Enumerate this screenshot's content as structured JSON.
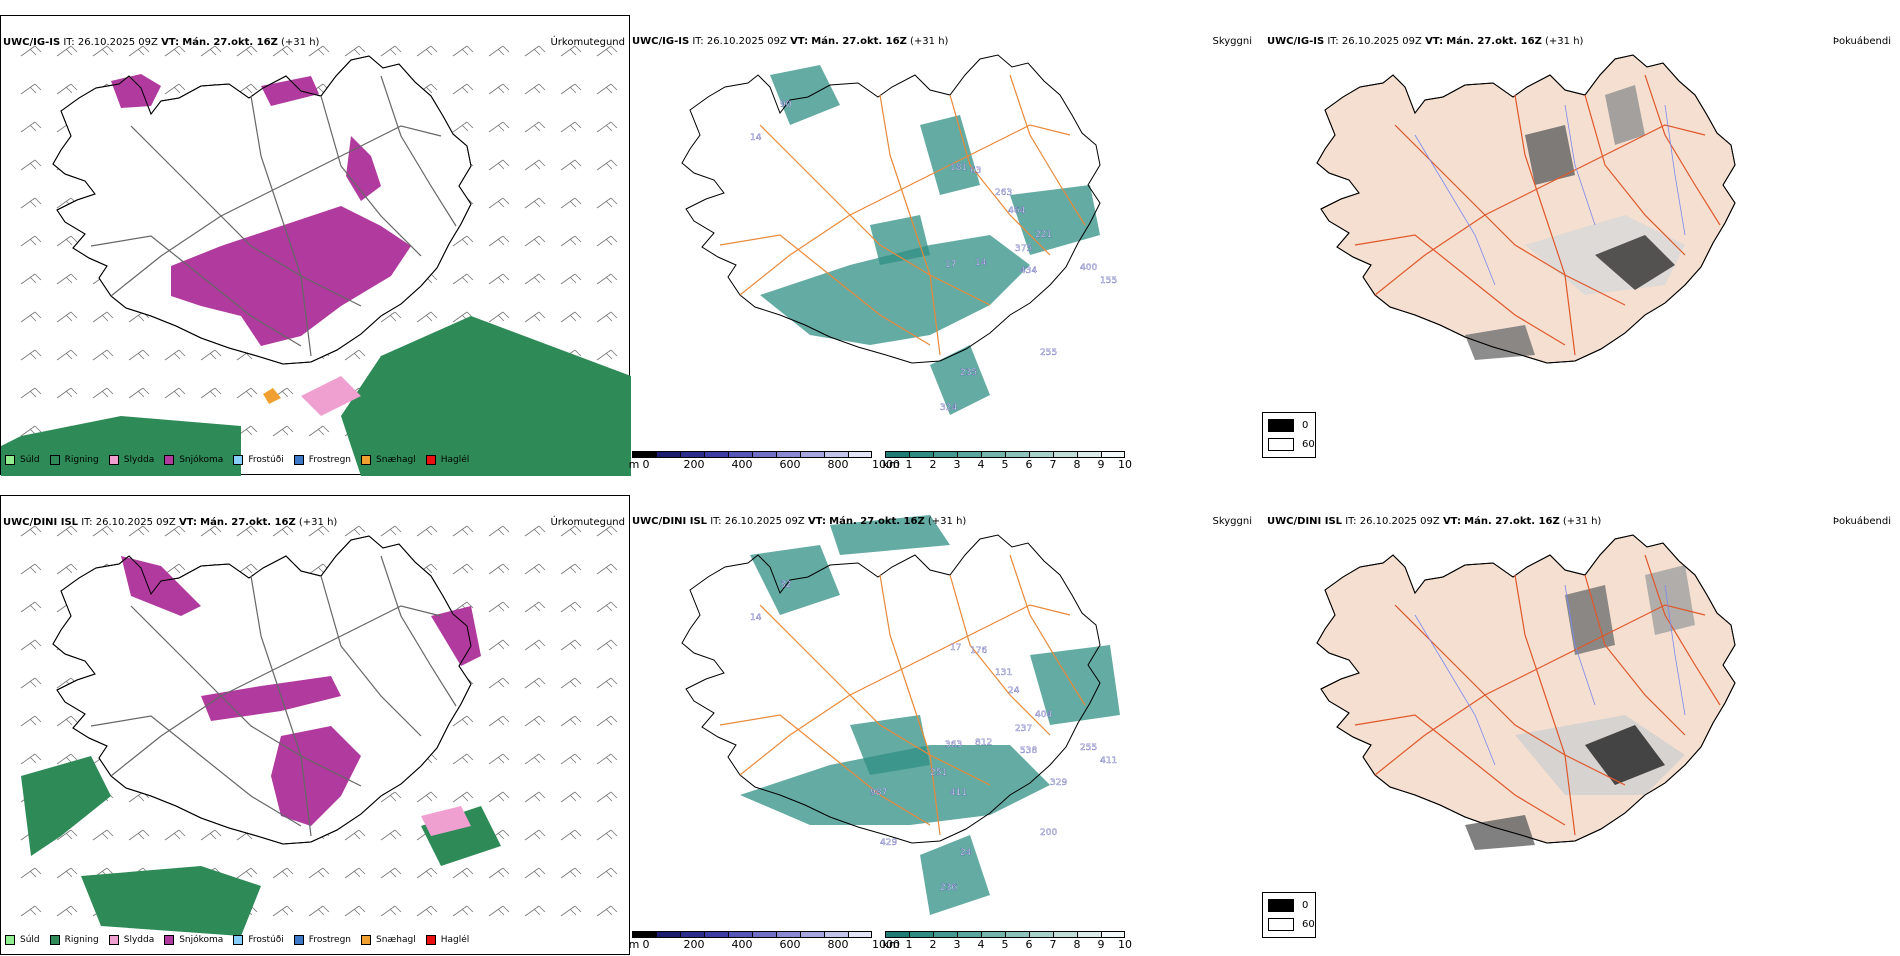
{
  "colors": {
    "suld": "#90ee90",
    "rigning": "#2e8b57",
    "slydda": "#f0a0d0",
    "snjokoma": "#b03a9e",
    "frostudi": "#87cefa",
    "frostregn": "#3d77c8",
    "snaehagl": "#f0a030",
    "haglel": "#e81010",
    "visibility": "#2f8f84",
    "roads": "#e8893a",
    "land": "#f5dfd0"
  },
  "legend": {
    "items": [
      {
        "label": "Súld",
        "color": "#90ee90"
      },
      {
        "label": "Rigning",
        "color": "#2e8b57"
      },
      {
        "label": "Slydda",
        "color": "#f0a0d0"
      },
      {
        "label": "Snjókoma",
        "color": "#b03a9e"
      },
      {
        "label": "Frostúði",
        "color": "#87cefa"
      },
      {
        "label": "Frostregn",
        "color": "#3d77c8"
      },
      {
        "label": "Snæhagl",
        "color": "#f0a030"
      },
      {
        "label": "Haglél",
        "color": "#e81010"
      }
    ]
  },
  "height_bar": {
    "unit": "m",
    "ticks": [
      "0",
      "200",
      "400",
      "600",
      "800",
      "1000"
    ],
    "colors": [
      "#000000",
      "#1c1c6e",
      "#2c2c8c",
      "#3c3ca4",
      "#5555b8",
      "#6f6fc6",
      "#8a8ad2",
      "#a6a6de",
      "#c4c4ea",
      "#e4e4f6"
    ]
  },
  "vis_bar": {
    "unit": "km",
    "ticks": [
      "1",
      "2",
      "3",
      "4",
      "5",
      "6",
      "7",
      "8",
      "9",
      "10"
    ],
    "colors": [
      "#1f7a74",
      "#2f8a82",
      "#449890",
      "#5aa69e",
      "#72b4ac",
      "#8cc2bb",
      "#a6d0ca",
      "#c0ddd8",
      "#daebe8",
      "#f2f8f7"
    ]
  },
  "cloud_legend": {
    "items": [
      {
        "label": "0",
        "color": "#000000"
      },
      {
        "label": "60",
        "color": "#ffffff"
      }
    ]
  },
  "rows": [
    {
      "header_model": "UWC/IG-IS",
      "header_it_label": "IT:",
      "header_it": "26.10.2025 09Z",
      "header_vt_label": "VT:",
      "header_vt": "Mán. 27.okt. 16Z",
      "header_lead": "(+31 h)",
      "precip_title": "Úrkomutegund",
      "vis_title": "Skyggni",
      "cloud_title": "Þokuábendi",
      "labels": [
        "90",
        "14",
        "181",
        "63",
        "263",
        "464",
        "221",
        "375",
        "14",
        "17",
        "434",
        "400",
        "155",
        "255",
        "235",
        "324"
      ]
    },
    {
      "header_model": "UWC/DINI ISL",
      "header_it_label": "IT:",
      "header_it": "26.10.2025 09Z",
      "header_vt_label": "VT:",
      "header_vt": "Mán. 27.okt. 16Z",
      "header_lead": "(+31 h)",
      "precip_title": "Úrkomutegund",
      "vis_title": "Skyggni",
      "cloud_title": "Þokuábendi",
      "labels": [
        "32",
        "14",
        "17",
        "176",
        "131",
        "24",
        "404",
        "237",
        "812",
        "363",
        "538",
        "255",
        "411",
        "200",
        "24",
        "236",
        "411",
        "429",
        "987",
        "251",
        "329"
      ]
    }
  ]
}
